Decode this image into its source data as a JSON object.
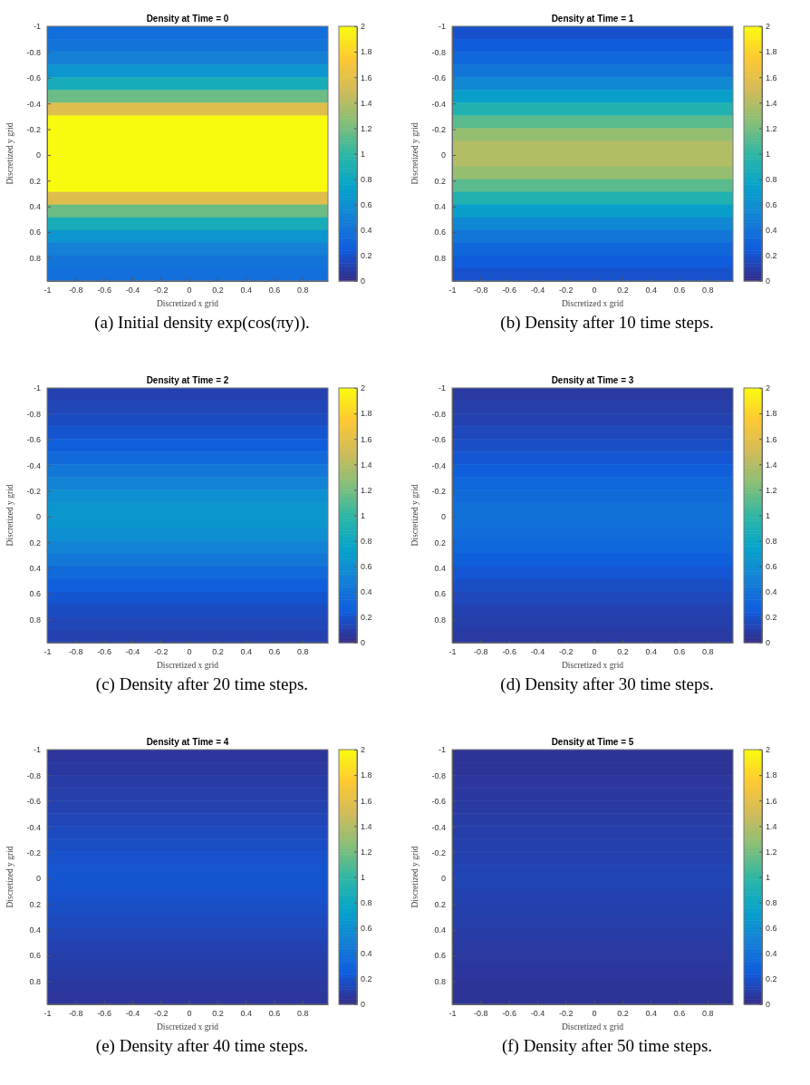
{
  "chart_data": [
    {
      "type": "heatmap",
      "title": "Density at Time = 0",
      "xlabel": "Discretized x grid",
      "ylabel": "Discretized y grid",
      "cells": [
        [
          0.37
        ],
        [
          0.41
        ],
        [
          0.49
        ],
        [
          0.64
        ],
        [
          0.86
        ],
        [
          1.17
        ],
        [
          1.57
        ],
        [
          2
        ],
        [
          2
        ],
        [
          2
        ],
        [
          2
        ],
        [
          2
        ],
        [
          2
        ],
        [
          1.57
        ],
        [
          1.17
        ],
        [
          0.86
        ],
        [
          0.64
        ],
        [
          0.49
        ],
        [
          0.41
        ],
        [
          0.37
        ]
      ],
      "xlim": [
        -1,
        0.98
      ],
      "xticks": [
        -1,
        -0.8,
        -0.6,
        -0.4,
        -0.2,
        0,
        0.2,
        0.4,
        0.6,
        0.8
      ],
      "ylim": [
        0.98,
        -1
      ],
      "yticks": [
        -1,
        -0.8,
        -0.6,
        -0.4,
        -0.2,
        0,
        0.2,
        0.4,
        0.6,
        0.8
      ],
      "clim": [
        0,
        2
      ],
      "cticks": [
        0,
        0.2,
        0.4,
        0.6,
        0.8,
        1,
        1.2,
        1.4,
        1.6,
        1.8,
        2
      ],
      "annotations": [
        "(a) Initial density exp(cos(πy))."
      ]
    },
    {
      "type": "heatmap",
      "title": "Density at Time = 1",
      "xlabel": "Discretized x grid",
      "ylabel": "Discretized y grid",
      "cells": [
        [
          0.2
        ],
        [
          0.25
        ],
        [
          0.32
        ],
        [
          0.42
        ],
        [
          0.55
        ],
        [
          0.72
        ],
        [
          0.92
        ],
        [
          1.12
        ],
        [
          1.3
        ],
        [
          1.4
        ],
        [
          1.4
        ],
        [
          1.3
        ],
        [
          1.12
        ],
        [
          0.92
        ],
        [
          0.72
        ],
        [
          0.55
        ],
        [
          0.42
        ],
        [
          0.32
        ],
        [
          0.25
        ],
        [
          0.2
        ]
      ],
      "xlim": [
        -1,
        0.98
      ],
      "xticks": [
        -1,
        -0.8,
        -0.6,
        -0.4,
        -0.2,
        0,
        0.2,
        0.4,
        0.6,
        0.8
      ],
      "ylim": [
        0.98,
        -1
      ],
      "yticks": [
        -1,
        -0.8,
        -0.6,
        -0.4,
        -0.2,
        0,
        0.2,
        0.4,
        0.6,
        0.8
      ],
      "clim": [
        0,
        2
      ],
      "cticks": [
        0,
        0.2,
        0.4,
        0.6,
        0.8,
        1,
        1.2,
        1.4,
        1.6,
        1.8,
        2
      ],
      "annotations": [
        "(b) Density after 10 time steps."
      ]
    },
    {
      "type": "heatmap",
      "title": "Density at Time = 2",
      "xlabel": "Discretized x grid",
      "ylabel": "Discretized y grid",
      "cells": [
        [
          0.12
        ],
        [
          0.14
        ],
        [
          0.17
        ],
        [
          0.21
        ],
        [
          0.27
        ],
        [
          0.34
        ],
        [
          0.43
        ],
        [
          0.52
        ],
        [
          0.6
        ],
        [
          0.66
        ],
        [
          0.66
        ],
        [
          0.6
        ],
        [
          0.52
        ],
        [
          0.43
        ],
        [
          0.34
        ],
        [
          0.27
        ],
        [
          0.21
        ],
        [
          0.17
        ],
        [
          0.14
        ],
        [
          0.12
        ]
      ],
      "xlim": [
        -1,
        0.98
      ],
      "xticks": [
        -1,
        -0.8,
        -0.6,
        -0.4,
        -0.2,
        0,
        0.2,
        0.4,
        0.6,
        0.8
      ],
      "ylim": [
        0.98,
        -1
      ],
      "yticks": [
        -1,
        -0.8,
        -0.6,
        -0.4,
        -0.2,
        0,
        0.2,
        0.4,
        0.6,
        0.8
      ],
      "clim": [
        0,
        2
      ],
      "cticks": [
        0,
        0.2,
        0.4,
        0.6,
        0.8,
        1,
        1.2,
        1.4,
        1.6,
        1.8,
        2
      ],
      "annotations": [
        "(c) Density after 20 time steps."
      ]
    },
    {
      "type": "heatmap",
      "title": "Density at Time = 3",
      "xlabel": "Discretized x grid",
      "ylabel": "Discretized y grid",
      "cells": [
        [
          0.08
        ],
        [
          0.1
        ],
        [
          0.12
        ],
        [
          0.15
        ],
        [
          0.18
        ],
        [
          0.22
        ],
        [
          0.27
        ],
        [
          0.32
        ],
        [
          0.36
        ],
        [
          0.39
        ],
        [
          0.39
        ],
        [
          0.36
        ],
        [
          0.32
        ],
        [
          0.27
        ],
        [
          0.22
        ],
        [
          0.18
        ],
        [
          0.15
        ],
        [
          0.12
        ],
        [
          0.1
        ],
        [
          0.08
        ]
      ],
      "xlim": [
        -1,
        0.98
      ],
      "xticks": [
        -1,
        -0.8,
        -0.6,
        -0.4,
        -0.2,
        0,
        0.2,
        0.4,
        0.6,
        0.8
      ],
      "ylim": [
        0.98,
        -1
      ],
      "yticks": [
        -1,
        -0.8,
        -0.6,
        -0.4,
        -0.2,
        0,
        0.2,
        0.4,
        0.6,
        0.8
      ],
      "clim": [
        0,
        2
      ],
      "cticks": [
        0,
        0.2,
        0.4,
        0.6,
        0.8,
        1,
        1.2,
        1.4,
        1.6,
        1.8,
        2
      ],
      "annotations": [
        "(d) Density after 30 time steps."
      ]
    },
    {
      "type": "heatmap",
      "title": "Density at Time = 4",
      "xlabel": "Discretized x grid",
      "ylabel": "Discretized y grid",
      "cells": [
        [
          0.06
        ],
        [
          0.07
        ],
        [
          0.09
        ],
        [
          0.1
        ],
        [
          0.12
        ],
        [
          0.14
        ],
        [
          0.16
        ],
        [
          0.18
        ],
        [
          0.2
        ],
        [
          0.21
        ],
        [
          0.21
        ],
        [
          0.2
        ],
        [
          0.18
        ],
        [
          0.16
        ],
        [
          0.14
        ],
        [
          0.12
        ],
        [
          0.1
        ],
        [
          0.09
        ],
        [
          0.07
        ],
        [
          0.06
        ]
      ],
      "xlim": [
        -1,
        0.98
      ],
      "xticks": [
        -1,
        -0.8,
        -0.6,
        -0.4,
        -0.2,
        0,
        0.2,
        0.4,
        0.6,
        0.8
      ],
      "ylim": [
        0.98,
        -1
      ],
      "yticks": [
        -1,
        -0.8,
        -0.6,
        -0.4,
        -0.2,
        0,
        0.2,
        0.4,
        0.6,
        0.8
      ],
      "clim": [
        0,
        2
      ],
      "cticks": [
        0,
        0.2,
        0.4,
        0.6,
        0.8,
        1,
        1.2,
        1.4,
        1.6,
        1.8,
        2
      ],
      "annotations": [
        "(e) Density after 40 time steps."
      ]
    },
    {
      "type": "heatmap",
      "title": "Density at Time = 5",
      "xlabel": "Discretized x grid",
      "ylabel": "Discretized y grid",
      "cells": [
        [
          0.05
        ],
        [
          0.05
        ],
        [
          0.06
        ],
        [
          0.07
        ],
        [
          0.08
        ],
        [
          0.09
        ],
        [
          0.1
        ],
        [
          0.11
        ],
        [
          0.12
        ],
        [
          0.13
        ],
        [
          0.13
        ],
        [
          0.12
        ],
        [
          0.11
        ],
        [
          0.1
        ],
        [
          0.09
        ],
        [
          0.08
        ],
        [
          0.07
        ],
        [
          0.06
        ],
        [
          0.05
        ],
        [
          0.05
        ]
      ],
      "xlim": [
        -1,
        0.98
      ],
      "xticks": [
        -1,
        -0.8,
        -0.6,
        -0.4,
        -0.2,
        0,
        0.2,
        0.4,
        0.6,
        0.8
      ],
      "ylim": [
        0.98,
        -1
      ],
      "yticks": [
        -1,
        -0.8,
        -0.6,
        -0.4,
        -0.2,
        0,
        0.2,
        0.4,
        0.6,
        0.8
      ],
      "clim": [
        0,
        2
      ],
      "cticks": [
        0,
        0.2,
        0.4,
        0.6,
        0.8,
        1,
        1.2,
        1.4,
        1.6,
        1.8,
        2
      ],
      "annotations": [
        "(f) Density after 50 time steps."
      ]
    }
  ]
}
